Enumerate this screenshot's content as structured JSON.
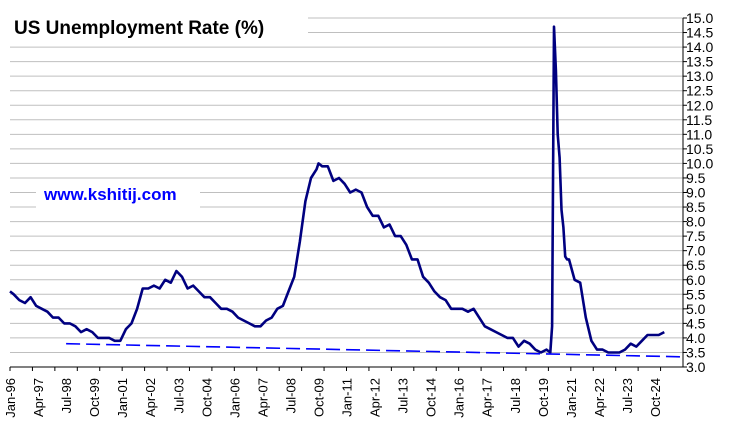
{
  "chart_data": {
    "type": "line",
    "title": "US Unemployment  Rate (%)",
    "source_label": "www.kshitij.com",
    "xlabel": "",
    "ylabel": "",
    "ylim": [
      3.0,
      15.0
    ],
    "y_ticks": [
      "3.0",
      "3.5",
      "4.0",
      "4.5",
      "5.0",
      "5.5",
      "6.0",
      "6.5",
      "7.0",
      "7.5",
      "8.0",
      "8.5",
      "9.0",
      "9.5",
      "10.0",
      "10.5",
      "11.0",
      "11.5",
      "12.0",
      "12.5",
      "13.0",
      "13.5",
      "14.0",
      "14.5",
      "15.0"
    ],
    "y_axis_position": "right",
    "grid": "horizontal",
    "legend": "none",
    "x_range": [
      "Jan-96",
      "Dec-25"
    ],
    "x_tick_labels": [
      "Jan-96",
      "Apr-97",
      "Jul-98",
      "Oct-99",
      "Jan-01",
      "Apr-02",
      "Jul-03",
      "Oct-04",
      "Jan-06",
      "Apr-07",
      "Jul-08",
      "Oct-09",
      "Jan-11",
      "Apr-12",
      "Jul-13",
      "Oct-14",
      "Jan-16",
      "Apr-17",
      "Jul-18",
      "Oct-19",
      "Jan-21",
      "Apr-22",
      "Jul-23",
      "Oct-24"
    ],
    "series": [
      {
        "color": "#000080",
        "style": "solid",
        "points": [
          [
            "Jan-96",
            5.6
          ],
          [
            "Mar-96",
            5.5
          ],
          [
            "Jun-96",
            5.3
          ],
          [
            "Sep-96",
            5.2
          ],
          [
            "Dec-96",
            5.4
          ],
          [
            "Mar-97",
            5.1
          ],
          [
            "Jun-97",
            5.0
          ],
          [
            "Sep-97",
            4.9
          ],
          [
            "Dec-97",
            4.7
          ],
          [
            "Mar-98",
            4.7
          ],
          [
            "Jun-98",
            4.5
          ],
          [
            "Sep-98",
            4.5
          ],
          [
            "Dec-98",
            4.4
          ],
          [
            "Mar-99",
            4.2
          ],
          [
            "Jun-99",
            4.3
          ],
          [
            "Sep-99",
            4.2
          ],
          [
            "Dec-99",
            4.0
          ],
          [
            "Mar-00",
            4.0
          ],
          [
            "Jun-00",
            4.0
          ],
          [
            "Sep-00",
            3.9
          ],
          [
            "Dec-00",
            3.9
          ],
          [
            "Mar-01",
            4.3
          ],
          [
            "Jun-01",
            4.5
          ],
          [
            "Sep-01",
            5.0
          ],
          [
            "Dec-01",
            5.7
          ],
          [
            "Mar-02",
            5.7
          ],
          [
            "Jun-02",
            5.8
          ],
          [
            "Sep-02",
            5.7
          ],
          [
            "Dec-02",
            6.0
          ],
          [
            "Mar-03",
            5.9
          ],
          [
            "Jun-03",
            6.3
          ],
          [
            "Sep-03",
            6.1
          ],
          [
            "Dec-03",
            5.7
          ],
          [
            "Mar-04",
            5.8
          ],
          [
            "Jun-04",
            5.6
          ],
          [
            "Sep-04",
            5.4
          ],
          [
            "Dec-04",
            5.4
          ],
          [
            "Mar-05",
            5.2
          ],
          [
            "Jun-05",
            5.0
          ],
          [
            "Sep-05",
            5.0
          ],
          [
            "Dec-05",
            4.9
          ],
          [
            "Mar-06",
            4.7
          ],
          [
            "Jun-06",
            4.6
          ],
          [
            "Sep-06",
            4.5
          ],
          [
            "Dec-06",
            4.4
          ],
          [
            "Mar-07",
            4.4
          ],
          [
            "Jun-07",
            4.6
          ],
          [
            "Sep-07",
            4.7
          ],
          [
            "Dec-07",
            5.0
          ],
          [
            "Mar-08",
            5.1
          ],
          [
            "Jun-08",
            5.6
          ],
          [
            "Sep-08",
            6.1
          ],
          [
            "Dec-08",
            7.3
          ],
          [
            "Mar-09",
            8.7
          ],
          [
            "Jun-09",
            9.5
          ],
          [
            "Sep-09",
            9.8
          ],
          [
            "Oct-09",
            10.0
          ],
          [
            "Dec-09",
            9.9
          ],
          [
            "Mar-10",
            9.9
          ],
          [
            "Jun-10",
            9.4
          ],
          [
            "Sep-10",
            9.5
          ],
          [
            "Dec-10",
            9.3
          ],
          [
            "Mar-11",
            9.0
          ],
          [
            "Jun-11",
            9.1
          ],
          [
            "Sep-11",
            9.0
          ],
          [
            "Dec-11",
            8.5
          ],
          [
            "Mar-12",
            8.2
          ],
          [
            "Jun-12",
            8.2
          ],
          [
            "Sep-12",
            7.8
          ],
          [
            "Dec-12",
            7.9
          ],
          [
            "Mar-13",
            7.5
          ],
          [
            "Jun-13",
            7.5
          ],
          [
            "Sep-13",
            7.2
          ],
          [
            "Dec-13",
            6.7
          ],
          [
            "Mar-14",
            6.7
          ],
          [
            "Jun-14",
            6.1
          ],
          [
            "Sep-14",
            5.9
          ],
          [
            "Dec-14",
            5.6
          ],
          [
            "Mar-15",
            5.4
          ],
          [
            "Jun-15",
            5.3
          ],
          [
            "Sep-15",
            5.0
          ],
          [
            "Dec-15",
            5.0
          ],
          [
            "Mar-16",
            5.0
          ],
          [
            "Jun-16",
            4.9
          ],
          [
            "Sep-16",
            5.0
          ],
          [
            "Dec-16",
            4.7
          ],
          [
            "Mar-17",
            4.4
          ],
          [
            "Jun-17",
            4.3
          ],
          [
            "Sep-17",
            4.2
          ],
          [
            "Dec-17",
            4.1
          ],
          [
            "Mar-18",
            4.0
          ],
          [
            "Jun-18",
            4.0
          ],
          [
            "Sep-18",
            3.7
          ],
          [
            "Dec-18",
            3.9
          ],
          [
            "Mar-19",
            3.8
          ],
          [
            "Jun-19",
            3.6
          ],
          [
            "Sep-19",
            3.5
          ],
          [
            "Dec-19",
            3.6
          ],
          [
            "Feb-20",
            3.5
          ],
          [
            "Mar-20",
            4.4
          ],
          [
            "Apr-20",
            14.7
          ],
          [
            "May-20",
            13.2
          ],
          [
            "Jun-20",
            11.0
          ],
          [
            "Jul-20",
            10.2
          ],
          [
            "Aug-20",
            8.4
          ],
          [
            "Sep-20",
            7.8
          ],
          [
            "Oct-20",
            6.8
          ],
          [
            "Nov-20",
            6.7
          ],
          [
            "Dec-20",
            6.7
          ],
          [
            "Mar-21",
            6.0
          ],
          [
            "Jun-21",
            5.9
          ],
          [
            "Sep-21",
            4.7
          ],
          [
            "Dec-21",
            3.9
          ],
          [
            "Mar-22",
            3.6
          ],
          [
            "Jun-22",
            3.6
          ],
          [
            "Sep-22",
            3.5
          ],
          [
            "Dec-22",
            3.5
          ],
          [
            "Mar-23",
            3.5
          ],
          [
            "Jun-23",
            3.6
          ],
          [
            "Sep-23",
            3.8
          ],
          [
            "Dec-23",
            3.7
          ],
          [
            "Mar-24",
            3.9
          ],
          [
            "Jun-24",
            4.1
          ],
          [
            "Sep-24",
            4.1
          ],
          [
            "Dec-24",
            4.1
          ],
          [
            "Mar-25",
            4.2
          ]
        ]
      },
      {
        "color": "#0000ff",
        "style": "dashed",
        "points": [
          [
            "Jul-98",
            3.8
          ],
          [
            "Dec-25",
            3.35
          ]
        ]
      }
    ]
  }
}
